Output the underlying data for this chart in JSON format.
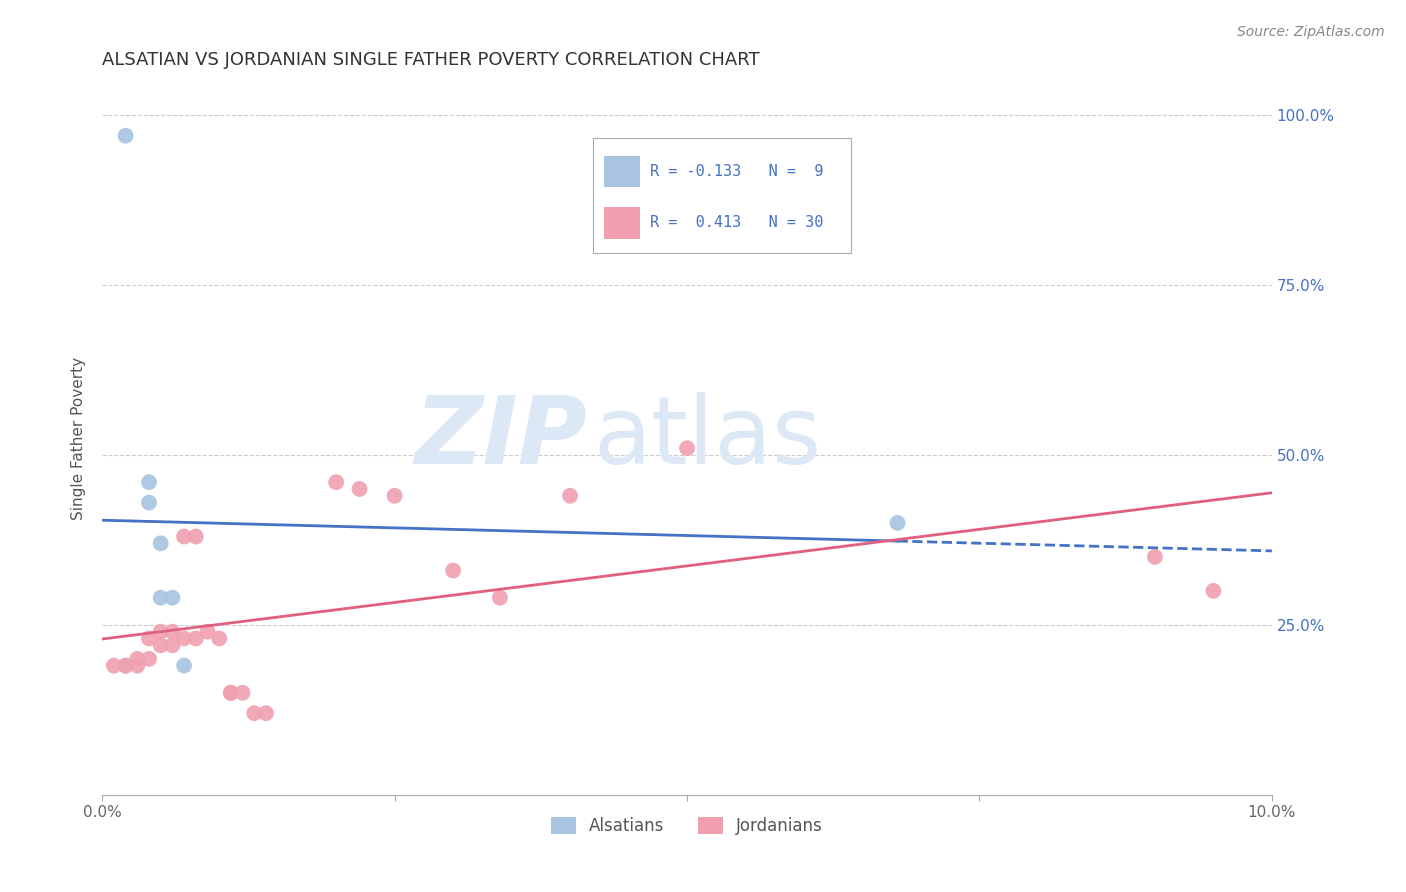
{
  "title": "ALSATIAN VS JORDANIAN SINGLE FATHER POVERTY CORRELATION CHART",
  "source": "Source: ZipAtlas.com",
  "ylabel": "Single Father Poverty",
  "yticks": [
    0.0,
    0.25,
    0.5,
    0.75,
    1.0
  ],
  "ytick_labels": [
    "",
    "25.0%",
    "50.0%",
    "75.0%",
    "100.0%"
  ],
  "xlim": [
    0.0,
    0.1
  ],
  "ylim": [
    0.0,
    1.05
  ],
  "alsatian_r": -0.133,
  "alsatian_n": 9,
  "jordanian_r": 0.413,
  "jordanian_n": 30,
  "alsatian_color": "#a8c4e0",
  "jordanian_color": "#f0a0b0",
  "alsatian_line_color": "#4472C4",
  "jordanian_line_color": "#E06080",
  "alsatian_x": [
    0.002,
    0.004,
    0.004,
    0.005,
    0.005,
    0.006,
    0.007,
    0.068,
    0.002
  ],
  "alsatian_y": [
    0.97,
    0.43,
    0.46,
    0.37,
    0.29,
    0.29,
    0.19,
    0.4,
    0.19
  ],
  "jordanian_x": [
    0.001,
    0.002,
    0.003,
    0.003,
    0.004,
    0.004,
    0.005,
    0.005,
    0.006,
    0.006,
    0.007,
    0.007,
    0.008,
    0.008,
    0.009,
    0.01,
    0.011,
    0.011,
    0.012,
    0.013,
    0.014,
    0.02,
    0.022,
    0.025,
    0.03,
    0.034,
    0.04,
    0.05,
    0.09,
    0.095
  ],
  "jordanian_y": [
    0.19,
    0.19,
    0.19,
    0.2,
    0.2,
    0.23,
    0.22,
    0.24,
    0.22,
    0.24,
    0.23,
    0.38,
    0.38,
    0.23,
    0.24,
    0.23,
    0.15,
    0.15,
    0.15,
    0.12,
    0.12,
    0.46,
    0.45,
    0.44,
    0.33,
    0.29,
    0.44,
    0.51,
    0.35,
    0.3
  ],
  "background_color": "#ffffff",
  "watermark_zip": "ZIP",
  "watermark_atlas": "atlas",
  "watermark_color": "#dce8f5",
  "title_fontsize": 13,
  "axis_label_fontsize": 11,
  "tick_fontsize": 11,
  "source_fontsize": 10
}
